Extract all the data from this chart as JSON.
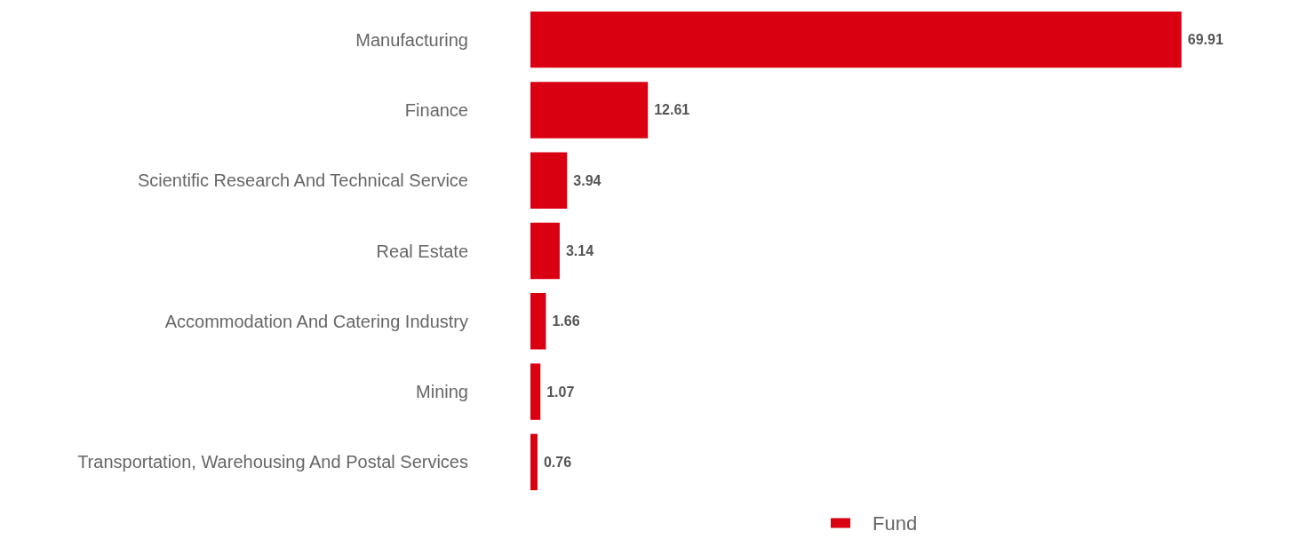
{
  "chart_data": {
    "type": "bar",
    "orientation": "horizontal",
    "categories": [
      "Manufacturing",
      "Finance",
      "Scientific Research And Technical Service",
      "Real Estate",
      "Accommodation And Catering Industry",
      "Mining",
      "Transportation, Warehousing And Postal Services"
    ],
    "series": [
      {
        "name": "Fund",
        "color": "#d90012",
        "values": [
          69.91,
          12.61,
          3.94,
          3.14,
          1.66,
          1.07,
          0.76
        ]
      }
    ],
    "data_labels": true,
    "legend": "bottom"
  }
}
